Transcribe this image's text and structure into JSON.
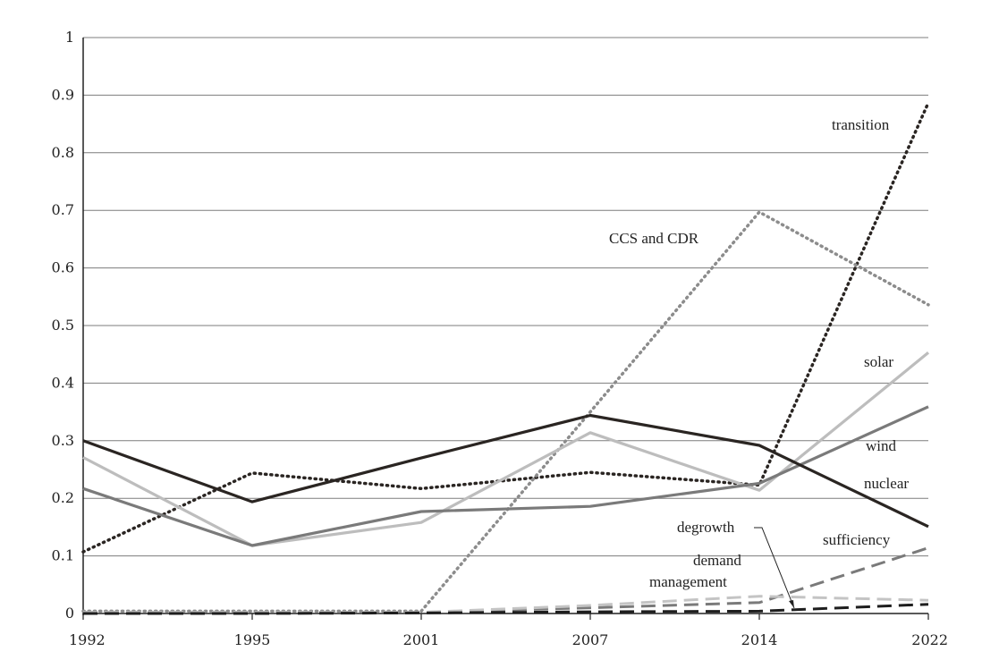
{
  "chart_data": {
    "type": "line",
    "title": "",
    "xlabel": "",
    "ylabel": "",
    "x": [
      "1992",
      "1995",
      "2001",
      "2007",
      "2014",
      "2022"
    ],
    "x_tick_labels": [
      "1992",
      "1995",
      "2001",
      "2007",
      "2014",
      "2022"
    ],
    "y_tick_labels": [
      "0",
      "0.1",
      "0.2",
      "0.3",
      "0.4",
      "0.5",
      "0.6",
      "0.7",
      "0.8",
      "0.9",
      "1"
    ],
    "ylim": [
      0,
      1
    ],
    "grid": "horizontal",
    "legend": "none (series labelled directly on the chart)",
    "series": [
      {
        "name": "transition",
        "color": "#2a2522",
        "style": "dotted",
        "values": [
          0.107,
          0.244,
          0.217,
          0.245,
          0.223,
          0.887
        ]
      },
      {
        "name": "CCS and CDR",
        "color": "#8c8c8c",
        "style": "dotted",
        "values": [
          0.004,
          0.004,
          0.004,
          0.35,
          0.697,
          0.536
        ]
      },
      {
        "name": "solar",
        "color": "#bdbdbd",
        "style": "solid",
        "values": [
          0.271,
          0.118,
          0.158,
          0.314,
          0.214,
          0.453
        ]
      },
      {
        "name": "wind",
        "color": "#7a7a7a",
        "style": "solid",
        "values": [
          0.217,
          0.118,
          0.177,
          0.186,
          0.226,
          0.359
        ]
      },
      {
        "name": "nuclear",
        "color": "#2a2522",
        "style": "solid",
        "values": [
          0.3,
          0.194,
          0.27,
          0.344,
          0.292,
          0.151
        ]
      },
      {
        "name": "sufficiency",
        "color": "#7a7a7a",
        "style": "dashed",
        "values": [
          0.002,
          0.002,
          0.002,
          0.01,
          0.019,
          0.114
        ]
      },
      {
        "name": "degrowth",
        "color": "#c4c4c4",
        "style": "dashed",
        "values": [
          0.002,
          0.002,
          0.002,
          0.014,
          0.03,
          0.023
        ]
      },
      {
        "name": "demand management",
        "color": "#1e1e1e",
        "style": "dashed",
        "values": [
          0.0,
          0.0,
          0.001,
          0.003,
          0.004,
          0.016
        ]
      }
    ],
    "annotations": [
      {
        "text": "transition"
      },
      {
        "text": "CCS and CDR"
      },
      {
        "text": "solar"
      },
      {
        "text": "wind"
      },
      {
        "text": "nuclear"
      },
      {
        "text": "sufficiency"
      },
      {
        "text": "degrowth"
      },
      {
        "text": "demand"
      },
      {
        "text": "management"
      }
    ]
  }
}
